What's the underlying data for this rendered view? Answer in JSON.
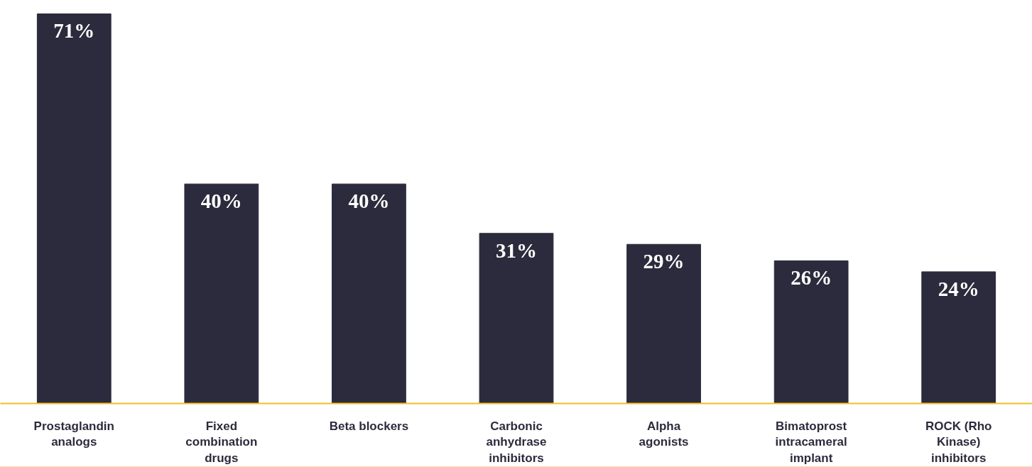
{
  "chart_data": {
    "type": "bar",
    "categories": [
      "Prostaglandin analogs",
      "Fixed combination drugs",
      "Beta blockers",
      "Carbonic anhydrase inhibitors",
      "Alpha agonists",
      "Bimatoprost intracameral implant",
      "ROCK (Rho Kinase) inhibitors"
    ],
    "values": [
      71,
      40,
      40,
      31,
      29,
      26,
      24
    ],
    "color": "#2b2b3d",
    "data_labels": true,
    "value_labels": [
      "71%",
      "40%",
      "40%",
      "31%",
      "29%",
      "26%",
      "24%"
    ],
    "grid": false
  }
}
